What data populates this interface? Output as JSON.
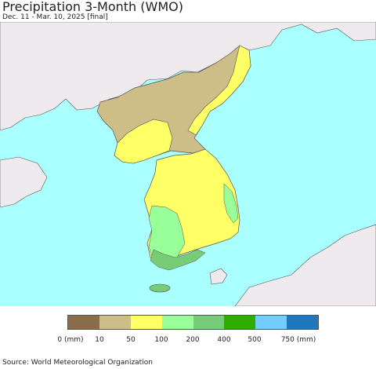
{
  "title": "Precipitation 3-Month (WMO)",
  "subtitle": "Dec. 11 - Mar. 10, 2025 [final]",
  "source": "Source: World Meteorological Organization",
  "colors": {
    "sea": "#aaffff",
    "land_outside": "#eeeaee",
    "border": "#555555"
  },
  "legend": {
    "colors": [
      "#8b6d4a",
      "#cdbd87",
      "#ffff66",
      "#99ff99",
      "#77cc77",
      "#33aa00",
      "#77ccff",
      "#2277bb"
    ],
    "labels": [
      "0 (mm)",
      "10",
      "50",
      "100",
      "200",
      "400",
      "500",
      "750 (mm)"
    ]
  },
  "regions": [
    {
      "name": "north-korea-north",
      "class": "10-50 mm"
    },
    {
      "name": "north-korea-east-coast",
      "class": "50-100 mm"
    },
    {
      "name": "north-korea-west",
      "class": "50-100 mm"
    },
    {
      "name": "south-korea-central",
      "class": "50-100 mm"
    },
    {
      "name": "south-korea-east-coast",
      "class": "100-200 mm"
    },
    {
      "name": "south-korea-southwest",
      "class": "100-200 mm"
    },
    {
      "name": "south-korea-south-coast",
      "class": "200-400 mm"
    },
    {
      "name": "jeju-island",
      "class": "200-400 mm"
    }
  ]
}
